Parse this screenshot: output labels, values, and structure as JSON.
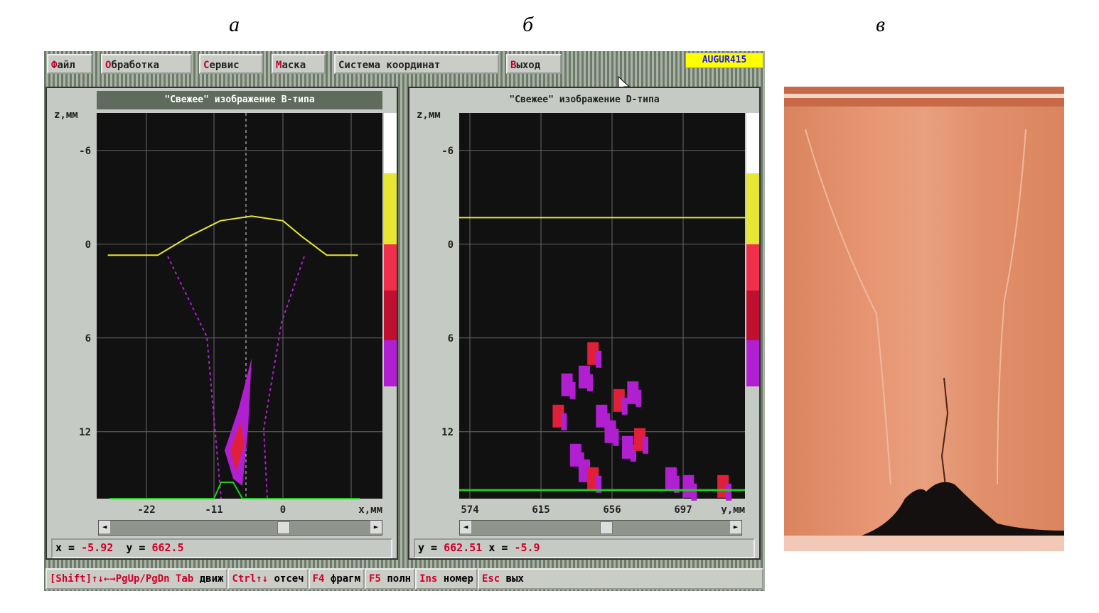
{
  "figure_labels": [
    "а",
    "б",
    "в"
  ],
  "menu": [
    {
      "hk": "Ф",
      "rest": "айл"
    },
    {
      "hk": "О",
      "rest": "бработка"
    },
    {
      "hk": "С",
      "rest": "ервис"
    },
    {
      "hk": "М",
      "rest": "аска"
    },
    {
      "hk": "",
      "rest": "Система координат"
    },
    {
      "hk": "В",
      "rest": "ыход"
    }
  ],
  "brand": "AUGUR415",
  "panel_b": {
    "title": "\"Свежее\" изображение B-типа",
    "zlabel": "z,мм",
    "zticks": [
      "-6",
      "0",
      "6",
      "12"
    ],
    "xticks": [
      "-22",
      "-11",
      "0"
    ],
    "xlabel": "x,мм",
    "readout": {
      "k1": "x =",
      "v1": "-5.92",
      "k2": "y =",
      "v2": "662.5"
    },
    "scroll_fraction": 0.67
  },
  "panel_d": {
    "title": "\"Свежее\" изображение D-типа",
    "zlabel": "z,мм",
    "zticks": [
      "-6",
      "0",
      "6",
      "12"
    ],
    "xticks": [
      "574",
      "615",
      "656",
      "697"
    ],
    "xlabel": "y,мм",
    "readout": {
      "k1": "y =",
      "v1": "662.51",
      "k2": "x =",
      "v2": "-5.9"
    },
    "scroll_fraction": 0.52
  },
  "status": [
    {
      "hk": "[Shift]↑↓←→PgUp/PgDn Tab",
      "rest": " движ"
    },
    {
      "hk": "Ctrl↑↓",
      "rest": " отсеч"
    },
    {
      "hk": "F4",
      "rest": " фрагм"
    },
    {
      "hk": "F5",
      "rest": " полн"
    },
    {
      "hk": "Ins",
      "rest": " номер"
    },
    {
      "hk": "Esc",
      "rest": " вых"
    }
  ],
  "colors": {
    "surface": "#e6e633",
    "bottom": "#22cc22",
    "defect": "#b020d0",
    "defect_hot": "#e0203a",
    "palette": [
      "#ffffff",
      "#e6e633",
      "#f0304a",
      "#c01030",
      "#b020d0"
    ]
  },
  "chart_data": [
    {
      "type": "line",
      "name": "B-scan surface",
      "x": [
        -28,
        -20,
        -15,
        -10,
        -5,
        0,
        3,
        7,
        12
      ],
      "z": [
        0.7,
        0.7,
        -0.5,
        -1.5,
        -1.8,
        -1.5,
        -0.5,
        0.7,
        0.7
      ]
    },
    {
      "type": "scatter",
      "name": "D-scan defects",
      "points": [
        [
          625,
          11
        ],
        [
          630,
          9
        ],
        [
          640,
          8.5
        ],
        [
          645,
          7
        ],
        [
          650,
          11
        ],
        [
          655,
          12
        ],
        [
          660,
          10
        ],
        [
          665,
          13
        ],
        [
          668,
          9.5
        ],
        [
          672,
          12.5
        ],
        [
          635,
          13.5
        ],
        [
          640,
          14.5
        ],
        [
          645,
          15
        ],
        [
          690,
          15
        ],
        [
          700,
          15.5
        ],
        [
          720,
          15.5
        ]
      ]
    }
  ]
}
